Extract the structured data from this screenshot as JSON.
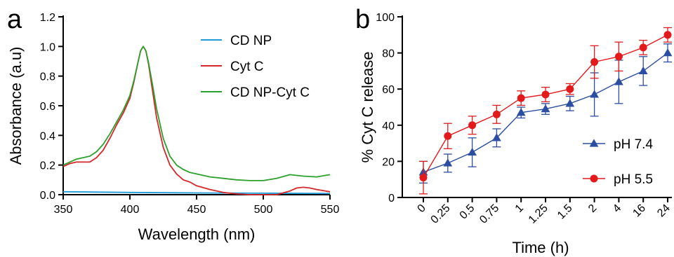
{
  "chart_data": [
    {
      "panel": "a",
      "type": "line",
      "xlabel": "Wavelength (nm)",
      "ylabel": "Absorbance (a.u)",
      "xlim": [
        350,
        550
      ],
      "ylim": [
        0,
        1.2
      ],
      "xticks": [
        "350",
        "400",
        "450",
        "500",
        "550"
      ],
      "yticks": [
        "0.0",
        "0.2",
        "0.4",
        "0.6",
        "0.8",
        "1.0",
        "1.2"
      ],
      "legend_position": "top-right",
      "grid": false,
      "series": [
        {
          "name": "CD NP",
          "color": "#1f9bd7",
          "x": [
            350,
            400,
            450,
            500,
            550
          ],
          "y": [
            0.02,
            0.015,
            0.012,
            0.01,
            0.008
          ]
        },
        {
          "name": "Cyt C",
          "color": "#d62728",
          "x": [
            350,
            355,
            360,
            365,
            370,
            375,
            380,
            385,
            390,
            395,
            400,
            403,
            406,
            408,
            410,
            412,
            414,
            417,
            420,
            425,
            430,
            435,
            440,
            445,
            450,
            460,
            470,
            480,
            490,
            500,
            510,
            520,
            525,
            530,
            535,
            540,
            550
          ],
          "y": [
            0.19,
            0.21,
            0.22,
            0.22,
            0.22,
            0.25,
            0.3,
            0.38,
            0.47,
            0.55,
            0.65,
            0.76,
            0.89,
            0.97,
            1.0,
            0.97,
            0.88,
            0.7,
            0.52,
            0.32,
            0.2,
            0.14,
            0.1,
            0.085,
            0.06,
            0.035,
            0.015,
            0.005,
            0.0,
            0.0,
            0.0,
            0.025,
            0.045,
            0.05,
            0.045,
            0.035,
            0.02
          ]
        },
        {
          "name": "CD NP-Cyt C",
          "color": "#2ca02c",
          "x": [
            350,
            355,
            360,
            365,
            370,
            375,
            380,
            385,
            390,
            395,
            400,
            403,
            406,
            408,
            410,
            412,
            414,
            417,
            420,
            425,
            430,
            435,
            440,
            445,
            450,
            460,
            470,
            480,
            490,
            500,
            510,
            520,
            525,
            530,
            540,
            550
          ],
          "y": [
            0.2,
            0.22,
            0.24,
            0.25,
            0.26,
            0.29,
            0.34,
            0.41,
            0.49,
            0.57,
            0.67,
            0.77,
            0.89,
            0.97,
            1.0,
            0.97,
            0.89,
            0.74,
            0.58,
            0.38,
            0.26,
            0.2,
            0.17,
            0.15,
            0.14,
            0.12,
            0.11,
            0.1,
            0.095,
            0.095,
            0.11,
            0.135,
            0.13,
            0.125,
            0.12,
            0.135
          ]
        }
      ]
    },
    {
      "panel": "b",
      "type": "line",
      "xlabel": "Time (h)",
      "ylabel": "% Cyt C release",
      "categories": [
        "0",
        "0.25",
        "0.5",
        "0.75",
        "1",
        "1.25",
        "1.5",
        "2",
        "4",
        "16",
        "24"
      ],
      "ylim": [
        0,
        100
      ],
      "yticks": [
        "0",
        "20",
        "40",
        "60",
        "80",
        "100"
      ],
      "legend_position": "bottom-right",
      "grid": false,
      "series": [
        {
          "name": "pH 7.4",
          "color": "#2b4ea2",
          "marker": "triangle",
          "values": [
            14,
            19,
            25,
            33,
            47,
            49,
            52,
            57,
            64,
            70,
            80
          ],
          "error": [
            6,
            5,
            8,
            5,
            3,
            3,
            4,
            12,
            12,
            8,
            5
          ]
        },
        {
          "name": "pH 5.5",
          "color": "#e31a1c",
          "marker": "circle",
          "values": [
            11,
            34,
            40,
            46,
            55,
            57,
            60,
            75,
            78,
            83,
            90
          ],
          "error": [
            9,
            7,
            5,
            5,
            4,
            4,
            3,
            9,
            8,
            4,
            4
          ]
        }
      ]
    }
  ]
}
